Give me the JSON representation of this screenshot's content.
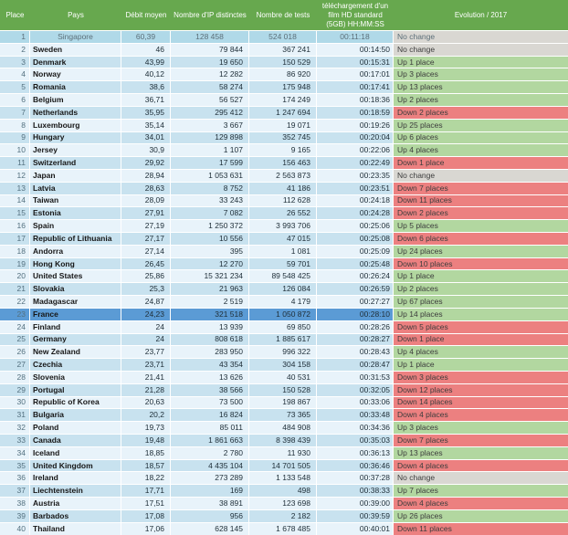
{
  "styles": {
    "header_bg": "#67a84e",
    "header_text": "#ffffff",
    "row_odd": "#c8e2ef",
    "row_even": "#e8f3fa",
    "first_bg": "#b0d9e8",
    "first_text": "#5c6f79",
    "highlight_bg": "#5b9bd5",
    "evo_up": "#b2d7a0",
    "evo_down": "#ec8080",
    "evo_none": "#d9d7d2",
    "text_dark": "#20303a",
    "place_text": "#53707f"
  },
  "chart_data": {
    "type": "table",
    "columns": [
      "Place",
      "Pays",
      "Débit moyen",
      "Nombre d'IP distinctes",
      "Nombre de tests",
      "téléchargement d'un film HD standard (5GB) HH:MM:SS",
      "Evolution / 2017"
    ],
    "highlighted_place": 23,
    "rows": [
      {
        "place": "1",
        "country": "Singapore",
        "speed": "60,39",
        "ips": "128 458",
        "tests": "524 018",
        "time": "00:11:18",
        "evolution": "No change"
      },
      {
        "place": "2",
        "country": "Sweden",
        "speed": "46",
        "ips": "79 844",
        "tests": "367 241",
        "time": "00:14:50",
        "evolution": "No change"
      },
      {
        "place": "3",
        "country": "Denmark",
        "speed": "43,99",
        "ips": "19 650",
        "tests": "150 529",
        "time": "00:15:31",
        "evolution": "Up 1 place"
      },
      {
        "place": "4",
        "country": "Norway",
        "speed": "40,12",
        "ips": "12 282",
        "tests": "86 920",
        "time": "00:17:01",
        "evolution": "Up 3 places"
      },
      {
        "place": "5",
        "country": "Romania",
        "speed": "38,6",
        "ips": "58 274",
        "tests": "175 948",
        "time": "00:17:41",
        "evolution": "Up 13 places"
      },
      {
        "place": "6",
        "country": "Belgium",
        "speed": "36,71",
        "ips": "56 527",
        "tests": "174 249",
        "time": "00:18:36",
        "evolution": "Up 2 places"
      },
      {
        "place": "7",
        "country": "Netherlands",
        "speed": "35,95",
        "ips": "295 412",
        "tests": "1 247 694",
        "time": "00:18:59",
        "evolution": "Down 2 places"
      },
      {
        "place": "8",
        "country": "Luxembourg",
        "speed": "35,14",
        "ips": "3 667",
        "tests": "19 071",
        "time": "00:19:26",
        "evolution": "Up 25 places"
      },
      {
        "place": "9",
        "country": "Hungary",
        "speed": "34,01",
        "ips": "129 898",
        "tests": "352 745",
        "time": "00:20:04",
        "evolution": "Up 6 places"
      },
      {
        "place": "10",
        "country": "Jersey",
        "speed": "30,9",
        "ips": "1 107",
        "tests": "9 165",
        "time": "00:22:06",
        "evolution": "Up 4 places"
      },
      {
        "place": "11",
        "country": "Switzerland",
        "speed": "29,92",
        "ips": "17 599",
        "tests": "156 463",
        "time": "00:22:49",
        "evolution": "Down 1 place"
      },
      {
        "place": "12",
        "country": "Japan",
        "speed": "28,94",
        "ips": "1 053 631",
        "tests": "2 563 873",
        "time": "00:23:35",
        "evolution": "No change"
      },
      {
        "place": "13",
        "country": "Latvia",
        "speed": "28,63",
        "ips": "8 752",
        "tests": "41 186",
        "time": "00:23:51",
        "evolution": "Down 7 places"
      },
      {
        "place": "14",
        "country": "Taiwan",
        "speed": "28,09",
        "ips": "33 243",
        "tests": "112 628",
        "time": "00:24:18",
        "evolution": "Down 11 places"
      },
      {
        "place": "15",
        "country": "Estonia",
        "speed": "27,91",
        "ips": "7 082",
        "tests": "26 552",
        "time": "00:24:28",
        "evolution": "Down 2 places"
      },
      {
        "place": "16",
        "country": "Spain",
        "speed": "27,19",
        "ips": "1 250 372",
        "tests": "3 993 706",
        "time": "00:25:06",
        "evolution": "Up 5 places"
      },
      {
        "place": "17",
        "country": "Republic of Lithuania",
        "speed": "27,17",
        "ips": "10 556",
        "tests": "47 015",
        "time": "00:25:08",
        "evolution": "Down 6 places"
      },
      {
        "place": "18",
        "country": "Andorra",
        "speed": "27,14",
        "ips": "395",
        "tests": "1 081",
        "time": "00:25:09",
        "evolution": "Up 24 places"
      },
      {
        "place": "19",
        "country": "Hong Kong",
        "speed": "26,45",
        "ips": "12 270",
        "tests": "59 701",
        "time": "00:25:48",
        "evolution": "Down 10 places"
      },
      {
        "place": "20",
        "country": "United States",
        "speed": "25,86",
        "ips": "15 321 234",
        "tests": "89 548 425",
        "time": "00:26:24",
        "evolution": "Up 1 place"
      },
      {
        "place": "21",
        "country": "Slovakia",
        "speed": "25,3",
        "ips": "21 963",
        "tests": "126 084",
        "time": "00:26:59",
        "evolution": "Up 2 places"
      },
      {
        "place": "22",
        "country": "Madagascar",
        "speed": "24,87",
        "ips": "2 519",
        "tests": "4 179",
        "time": "00:27:27",
        "evolution": "Up 67 places"
      },
      {
        "place": "23",
        "country": "France",
        "speed": "24,23",
        "ips": "321 518",
        "tests": "1 050 872",
        "time": "00:28:10",
        "evolution": "Up 14 places"
      },
      {
        "place": "24",
        "country": "Finland",
        "speed": "24",
        "ips": "13 939",
        "tests": "69 850",
        "time": "00:28:26",
        "evolution": "Down 5 places"
      },
      {
        "place": "25",
        "country": "Germany",
        "speed": "24",
        "ips": "808 618",
        "tests": "1 885 617",
        "time": "00:28:27",
        "evolution": "Down 1 place"
      },
      {
        "place": "26",
        "country": "New Zealand",
        "speed": "23,77",
        "ips": "283 950",
        "tests": "996 322",
        "time": "00:28:43",
        "evolution": "Up 4 places"
      },
      {
        "place": "27",
        "country": "Czechia",
        "speed": "23,71",
        "ips": "43 354",
        "tests": "304 158",
        "time": "00:28:47",
        "evolution": "Up 1 place"
      },
      {
        "place": "28",
        "country": "Slovenia",
        "speed": "21,41",
        "ips": "13 626",
        "tests": "40 531",
        "time": "00:31:53",
        "evolution": "Down 3 places"
      },
      {
        "place": "29",
        "country": "Portugal",
        "speed": "21,28",
        "ips": "38 566",
        "tests": "150 528",
        "time": "00:32:05",
        "evolution": "Down 12 places"
      },
      {
        "place": "30",
        "country": "Republic of Korea",
        "speed": "20,63",
        "ips": "73 500",
        "tests": "198 867",
        "time": "00:33:06",
        "evolution": "Down 14 places"
      },
      {
        "place": "31",
        "country": "Bulgaria",
        "speed": "20,2",
        "ips": "16 824",
        "tests": "73 365",
        "time": "00:33:48",
        "evolution": "Down 4 places"
      },
      {
        "place": "32",
        "country": "Poland",
        "speed": "19,73",
        "ips": "85 011",
        "tests": "484 908",
        "time": "00:34:36",
        "evolution": "Up 3 places"
      },
      {
        "place": "33",
        "country": "Canada",
        "speed": "19,48",
        "ips": "1 861 663",
        "tests": "8 398 439",
        "time": "00:35:03",
        "evolution": "Down 7 places"
      },
      {
        "place": "34",
        "country": "Iceland",
        "speed": "18,85",
        "ips": "2 780",
        "tests": "11 930",
        "time": "00:36:13",
        "evolution": "Up 13 places"
      },
      {
        "place": "35",
        "country": "United Kingdom",
        "speed": "18,57",
        "ips": "4 435 104",
        "tests": "14 701 505",
        "time": "00:36:46",
        "evolution": "Down 4 places"
      },
      {
        "place": "36",
        "country": "Ireland",
        "speed": "18,22",
        "ips": "273 289",
        "tests": "1 133 548",
        "time": "00:37:28",
        "evolution": "No change"
      },
      {
        "place": "37",
        "country": "Liechtenstein",
        "speed": "17,71",
        "ips": "169",
        "tests": "498",
        "time": "00:38:33",
        "evolution": "Up 7 places"
      },
      {
        "place": "38",
        "country": "Austria",
        "speed": "17,51",
        "ips": "38 891",
        "tests": "123 698",
        "time": "00:39:00",
        "evolution": "Down 4 places"
      },
      {
        "place": "39",
        "country": "Barbados",
        "speed": "17,08",
        "ips": "956",
        "tests": "2 182",
        "time": "00:39:59",
        "evolution": "Up 26 places"
      },
      {
        "place": "40",
        "country": "Thailand",
        "speed": "17,06",
        "ips": "628 145",
        "tests": "1 678 485",
        "time": "00:40:01",
        "evolution": "Down 11 places"
      }
    ]
  }
}
